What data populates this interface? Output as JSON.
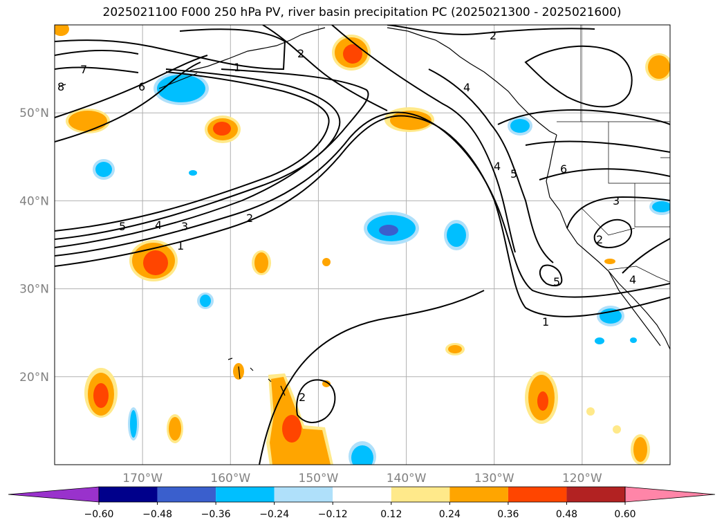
{
  "title": "2025021100 F000 250 hPa PV, river basin precipitation PC (2025021300 - 2025021600)",
  "map": {
    "lon_range": [
      -180,
      -110
    ],
    "lat_range": [
      10,
      60
    ],
    "lat_ticks": [
      {
        "lat": 50,
        "label": "50°N"
      },
      {
        "lat": 40,
        "label": "40°N"
      },
      {
        "lat": 30,
        "label": "30°N"
      },
      {
        "lat": 20,
        "label": "20°N"
      }
    ],
    "lon_ticks": [
      {
        "lon": -170,
        "label": "170°W"
      },
      {
        "lon": -160,
        "label": "160°W"
      },
      {
        "lon": -150,
        "label": "150°W"
      },
      {
        "lon": -140,
        "label": "140°W"
      },
      {
        "lon": -130,
        "label": "130°W"
      },
      {
        "lon": -120,
        "label": "120°W"
      }
    ],
    "gridlines": true,
    "contour_labels": [
      "7",
      "6",
      "5",
      "4",
      "3",
      "2",
      "1",
      "8",
      "2",
      "1",
      "2",
      "4",
      "5",
      "6",
      "3",
      "2",
      "4",
      "5",
      "1",
      "2",
      "4"
    ]
  },
  "colorbar": {
    "ticks": [
      "−0.60",
      "−0.48",
      "−0.36",
      "−0.24",
      "−0.12",
      "0.12",
      "0.24",
      "0.36",
      "0.48",
      "0.60"
    ],
    "colors": [
      "#9932cc",
      "#00008b",
      "#3a5fcd",
      "#00bfff",
      "#afe0fa",
      "#ffffff",
      "#ffe98a",
      "#ffa500",
      "#ff4500",
      "#b22222",
      "#ff85a8"
    ]
  }
}
